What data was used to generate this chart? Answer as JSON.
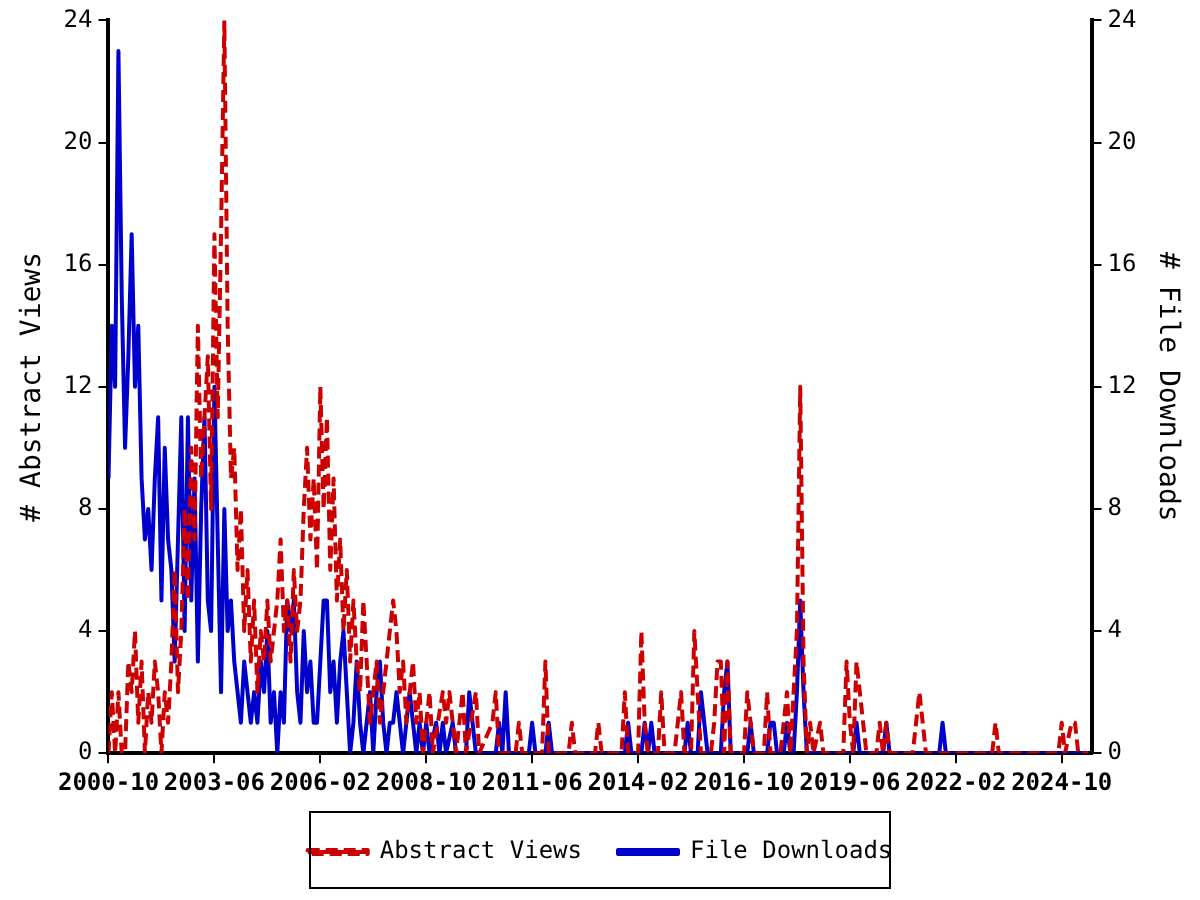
{
  "chart_data": {
    "type": "line",
    "xlabel": null,
    "ylabel": "# Abstract Views",
    "y2label": "# File Downloads",
    "xlim": [
      "2000-10",
      "2025-07"
    ],
    "xticks": [
      "2000-10",
      "2003-06",
      "2006-02",
      "2008-10",
      "2011-06",
      "2014-02",
      "2016-10",
      "2019-06",
      "2022-02",
      "2024-10"
    ],
    "ylim": [
      0,
      24
    ],
    "yticks": [
      0,
      4,
      8,
      12,
      16,
      20,
      24
    ],
    "y2lim": [
      0,
      24
    ],
    "y2ticks": [
      0,
      4,
      8,
      12,
      16,
      20,
      24
    ],
    "grid": false,
    "legend": "bottom",
    "marker": "none",
    "series": [
      {
        "name": "Abstract Views",
        "color": "#cc0000",
        "line_style": "dashed",
        "x": [
          "2000-10",
          "2000-11",
          "2000-12",
          "2001-01",
          "2001-02",
          "2001-03",
          "2001-04",
          "2001-05",
          "2001-06",
          "2001-07",
          "2001-08",
          "2001-09",
          "2001-10",
          "2001-11",
          "2001-12",
          "2002-01",
          "2002-02",
          "2002-03",
          "2002-04",
          "2002-05",
          "2002-06",
          "2002-07",
          "2002-08",
          "2002-09",
          "2002-10",
          "2002-11",
          "2002-12",
          "2003-01",
          "2003-02",
          "2003-03",
          "2003-04",
          "2003-05",
          "2003-06",
          "2003-07",
          "2003-08",
          "2003-09",
          "2003-10",
          "2003-11",
          "2003-12",
          "2004-01",
          "2004-02",
          "2004-03",
          "2004-04",
          "2004-05",
          "2004-06",
          "2004-07",
          "2004-08",
          "2004-09",
          "2004-10",
          "2004-11",
          "2004-12",
          "2005-01",
          "2005-02",
          "2005-03",
          "2005-04",
          "2005-05",
          "2005-06",
          "2005-07",
          "2005-08",
          "2005-09",
          "2005-10",
          "2005-11",
          "2005-12",
          "2006-01",
          "2006-02",
          "2006-03",
          "2006-04",
          "2006-05",
          "2006-06",
          "2006-07",
          "2006-08",
          "2006-09",
          "2006-10",
          "2006-11",
          "2006-12",
          "2007-01",
          "2007-02",
          "2007-03",
          "2007-04",
          "2007-05",
          "2007-06",
          "2007-07",
          "2007-08",
          "2007-09",
          "2007-10",
          "2007-11",
          "2007-12",
          "2008-01",
          "2008-02",
          "2008-03",
          "2008-04",
          "2008-05",
          "2008-06",
          "2008-07",
          "2008-08",
          "2008-09",
          "2008-10",
          "2008-11",
          "2008-12",
          "2009-03",
          "2009-04",
          "2009-05",
          "2009-07",
          "2009-09",
          "2009-10",
          "2010-01",
          "2010-02",
          "2010-06",
          "2010-07",
          "2010-08",
          "2011-01",
          "2011-02",
          "2011-03",
          "2011-09",
          "2011-10",
          "2011-11",
          "2012-05",
          "2012-06",
          "2012-07",
          "2013-01",
          "2013-02",
          "2013-03",
          "2013-09",
          "2013-10",
          "2013-11",
          "2014-02",
          "2014-03",
          "2014-04",
          "2014-05",
          "2014-08",
          "2014-09",
          "2014-10",
          "2015-01",
          "2015-02",
          "2015-03",
          "2015-04",
          "2015-06",
          "2015-07",
          "2015-08",
          "2015-09",
          "2015-12",
          "2016-01",
          "2016-02",
          "2016-03",
          "2016-04",
          "2016-05",
          "2016-06",
          "2016-10",
          "2016-11",
          "2016-12",
          "2017-01",
          "2017-04",
          "2017-05",
          "2017-06",
          "2017-09",
          "2017-10",
          "2017-11",
          "2017-12",
          "2018-01",
          "2018-02",
          "2018-03",
          "2018-04",
          "2018-05",
          "2018-06",
          "2018-07",
          "2018-09",
          "2018-10",
          "2019-04",
          "2019-05",
          "2019-06",
          "2019-07",
          "2019-08",
          "2019-09",
          "2019-10",
          "2019-11",
          "2020-02",
          "2020-03",
          "2020-04",
          "2020-05",
          "2020-06",
          "2021-01",
          "2021-02",
          "2021-03",
          "2021-04",
          "2021-05",
          "2023-01",
          "2023-02",
          "2023-03",
          "2024-09",
          "2024-10",
          "2024-11",
          "2025-01",
          "2025-02",
          "2025-03",
          "2025-06"
        ],
        "values": [
          0,
          2,
          0,
          2,
          0,
          0,
          3,
          2,
          4,
          1,
          3,
          0,
          2,
          1,
          3,
          2,
          0,
          2,
          1,
          3,
          6,
          2,
          4,
          8,
          5,
          10,
          7,
          14,
          9,
          11,
          13,
          8,
          17,
          11,
          17,
          24,
          14,
          9,
          10,
          6,
          8,
          4,
          6,
          3,
          5,
          2,
          4,
          3,
          5,
          3,
          4,
          5,
          7,
          4,
          5,
          3,
          6,
          4,
          5,
          8,
          10,
          7,
          9,
          6,
          12,
          8,
          11,
          6,
          9,
          5,
          7,
          4,
          6,
          3,
          5,
          3,
          2,
          5,
          3,
          1,
          2,
          3,
          1,
          2,
          3,
          4,
          5,
          4,
          2,
          3,
          1,
          2,
          3,
          1,
          2,
          0,
          1,
          2,
          0,
          2,
          1,
          2,
          0,
          2,
          0,
          2,
          0,
          1,
          2,
          0,
          0,
          1,
          0,
          0,
          3,
          0,
          0,
          1,
          0,
          0,
          1,
          0,
          0,
          2,
          0,
          0,
          4,
          1,
          0,
          0,
          2,
          0,
          0,
          1,
          2,
          0,
          0,
          4,
          2,
          0,
          0,
          1,
          3,
          3,
          0,
          3,
          0,
          0,
          2,
          1,
          0,
          0,
          2,
          0,
          0,
          1,
          2,
          0,
          2,
          4,
          12,
          3,
          0,
          1,
          0,
          1,
          0,
          0,
          3,
          1,
          0,
          3,
          2,
          1,
          0,
          0,
          1,
          0,
          1,
          0,
          0,
          1,
          2,
          1,
          0,
          0,
          1,
          0,
          0,
          1,
          0,
          1,
          1,
          0,
          0
        ]
      },
      {
        "name": "File Downloads",
        "color": "#0000cc",
        "line_style": "solid",
        "axis": "y2",
        "x": [
          "2000-10",
          "2000-11",
          "2000-12",
          "2001-01",
          "2001-02",
          "2001-03",
          "2001-04",
          "2001-05",
          "2001-06",
          "2001-07",
          "2001-08",
          "2001-09",
          "2001-10",
          "2001-11",
          "2001-12",
          "2002-01",
          "2002-02",
          "2002-03",
          "2002-04",
          "2002-05",
          "2002-06",
          "2002-07",
          "2002-08",
          "2002-09",
          "2002-10",
          "2002-11",
          "2002-12",
          "2003-01",
          "2003-02",
          "2003-03",
          "2003-04",
          "2003-05",
          "2003-06",
          "2003-07",
          "2003-08",
          "2003-09",
          "2003-10",
          "2003-11",
          "2003-12",
          "2004-01",
          "2004-02",
          "2004-03",
          "2004-04",
          "2004-05",
          "2004-06",
          "2004-07",
          "2004-08",
          "2004-09",
          "2004-10",
          "2004-11",
          "2004-12",
          "2005-01",
          "2005-02",
          "2005-03",
          "2005-04",
          "2005-05",
          "2005-06",
          "2005-07",
          "2005-08",
          "2005-09",
          "2005-10",
          "2005-11",
          "2005-12",
          "2006-01",
          "2006-02",
          "2006-03",
          "2006-04",
          "2006-05",
          "2006-06",
          "2006-07",
          "2006-08",
          "2006-09",
          "2006-10",
          "2006-11",
          "2006-12",
          "2007-01",
          "2007-02",
          "2007-03",
          "2007-04",
          "2007-05",
          "2007-06",
          "2007-07",
          "2007-08",
          "2007-09",
          "2007-10",
          "2007-11",
          "2007-12",
          "2008-01",
          "2008-02",
          "2008-03",
          "2008-04",
          "2008-05",
          "2008-06",
          "2008-07",
          "2008-08",
          "2008-09",
          "2008-10",
          "2008-11",
          "2009-01",
          "2009-02",
          "2009-03",
          "2009-04",
          "2009-06",
          "2009-07",
          "2009-10",
          "2009-11",
          "2009-12",
          "2010-01",
          "2010-07",
          "2010-08",
          "2010-09",
          "2010-10",
          "2010-11",
          "2011-05",
          "2011-06",
          "2011-07",
          "2011-10",
          "2011-11",
          "2011-12",
          "2013-10",
          "2013-11",
          "2013-12",
          "2014-03",
          "2014-04",
          "2014-05",
          "2014-06",
          "2014-07",
          "2015-04",
          "2015-05",
          "2015-06",
          "2015-08",
          "2015-09",
          "2015-10",
          "2015-11",
          "2016-03",
          "2016-04",
          "2016-05",
          "2016-06",
          "2016-11",
          "2016-12",
          "2017-01",
          "2017-05",
          "2017-06",
          "2017-07",
          "2017-08",
          "2017-10",
          "2017-11",
          "2017-12",
          "2018-01",
          "2018-02",
          "2018-03",
          "2018-04",
          "2018-05",
          "2019-07",
          "2019-08",
          "2019-09",
          "2020-04",
          "2020-05",
          "2020-06",
          "2021-09",
          "2021-10",
          "2021-11",
          "2025-06"
        ],
        "values": [
          9,
          14,
          12,
          23,
          15,
          10,
          13,
          17,
          12,
          14,
          9,
          7,
          8,
          6,
          9,
          11,
          5,
          10,
          7,
          6,
          3,
          7,
          11,
          4,
          11,
          5,
          9,
          3,
          8,
          11,
          5,
          4,
          12,
          7,
          2,
          8,
          4,
          5,
          3,
          2,
          1,
          3,
          2,
          1,
          2,
          1,
          3,
          2,
          4,
          1,
          2,
          0,
          2,
          1,
          5,
          4,
          5,
          2,
          1,
          4,
          2,
          3,
          1,
          1,
          3,
          5,
          5,
          2,
          3,
          1,
          3,
          4,
          2,
          0,
          1,
          3,
          1,
          0,
          1,
          2,
          0,
          2,
          3,
          1,
          0,
          1,
          1,
          2,
          1,
          0,
          1,
          2,
          1,
          0,
          1,
          0,
          1,
          0,
          1,
          0,
          1,
          0,
          1,
          0,
          0,
          2,
          1,
          0,
          0,
          1,
          0,
          2,
          0,
          0,
          1,
          0,
          0,
          1,
          0,
          0,
          1,
          0,
          0,
          1,
          0,
          1,
          0,
          0,
          1,
          0,
          0,
          2,
          1,
          0,
          0,
          2,
          3,
          0,
          0,
          1,
          0,
          0,
          1,
          1,
          0,
          0,
          1,
          0,
          0,
          2,
          5,
          2,
          0,
          0,
          1,
          0,
          0,
          1,
          0,
          0,
          1,
          0,
          0
        ]
      }
    ]
  }
}
